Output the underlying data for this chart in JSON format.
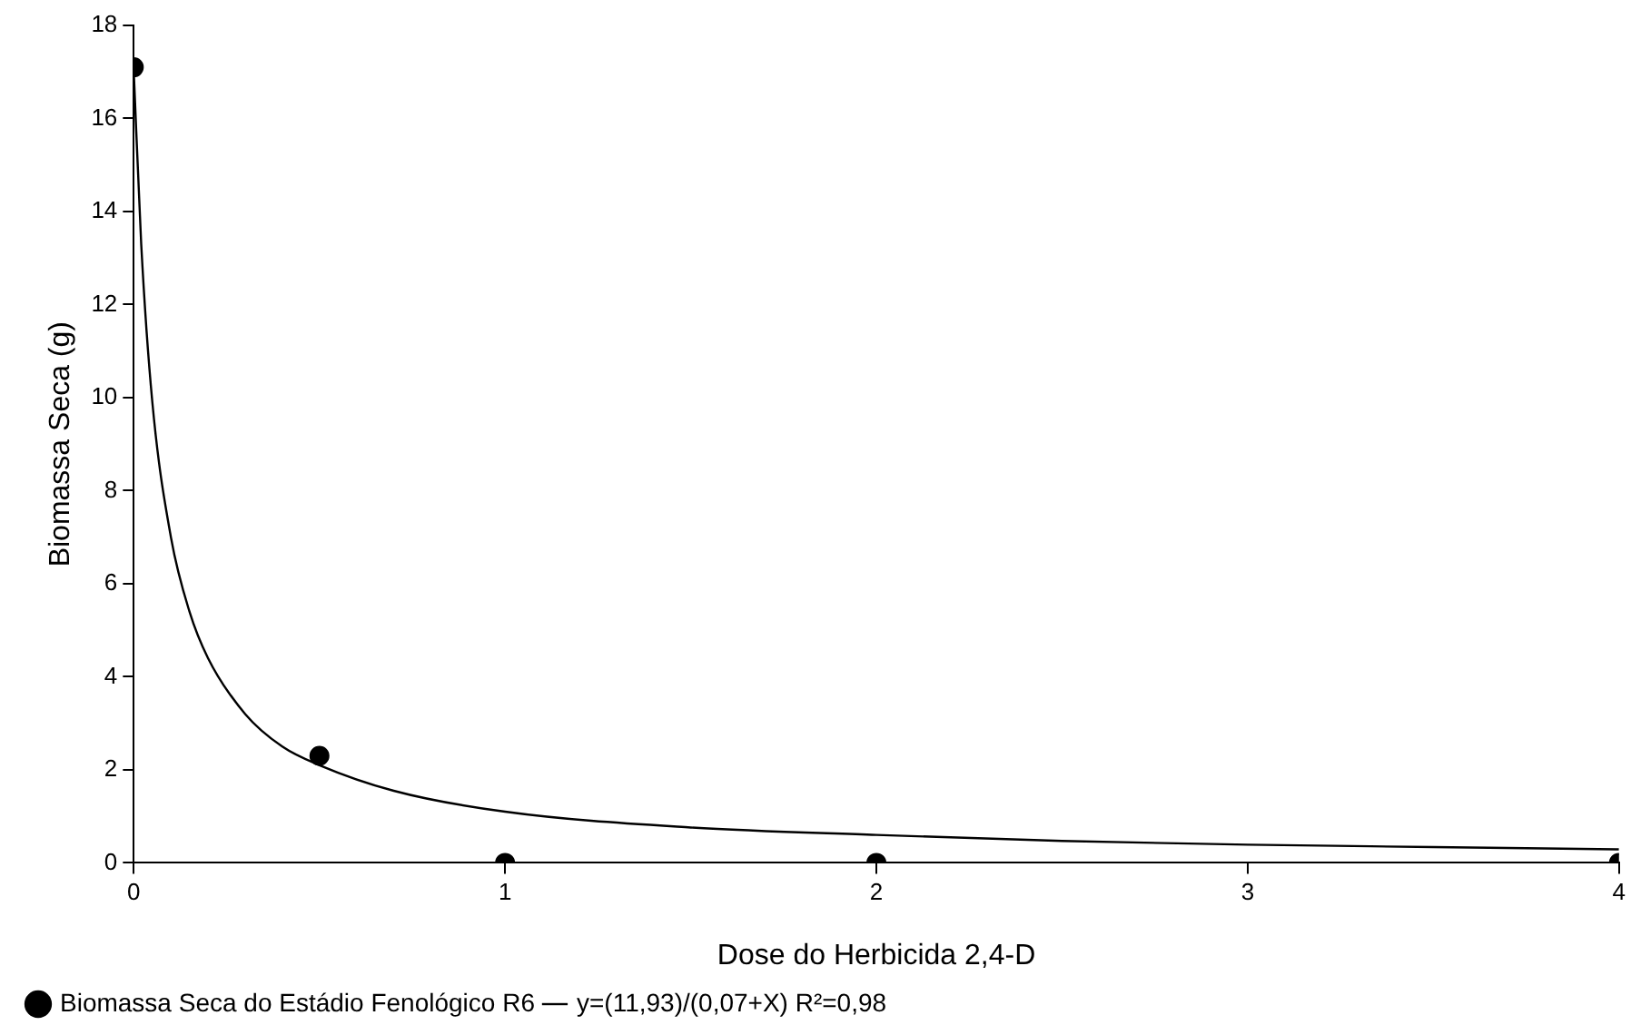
{
  "chart_data": {
    "type": "scatter",
    "xlabel": "Dose do Herbicida 2,4-D",
    "ylabel": "Biomassa Seca (g)",
    "xlim": [
      0,
      4
    ],
    "xticks": [
      0,
      1,
      2,
      3,
      4
    ],
    "ylim": [
      0,
      18
    ],
    "yticks": [
      0,
      2,
      4,
      6,
      8,
      10,
      12,
      14,
      16,
      18
    ],
    "grid": false,
    "legend": "bottom left",
    "line_style": "solid",
    "series": [
      {
        "name": "Biomassa Seca do Estádio Fenológico R6",
        "marker": "circle",
        "color": "#000000",
        "x": [
          0,
          0.5,
          1,
          2,
          4
        ],
        "values": [
          17.1,
          2.3,
          0,
          0,
          0
        ]
      },
      {
        "name": "y=(11,93)/(0,07+X) R²=0,98",
        "type": "line",
        "marker": "none",
        "color": "#000000",
        "x": [
          0,
          0.02,
          0.05,
          0.1,
          0.15,
          0.2,
          0.3,
          0.4,
          0.5,
          0.7,
          1,
          1.5,
          2,
          2.5,
          3,
          3.5,
          4
        ],
        "values": [
          17.0,
          13.3,
          9.9,
          7.0,
          5.4,
          4.4,
          3.2,
          2.5,
          2.1,
          1.55,
          1.1,
          0.76,
          0.6,
          0.47,
          0.39,
          0.34,
          0.29
        ]
      }
    ]
  }
}
